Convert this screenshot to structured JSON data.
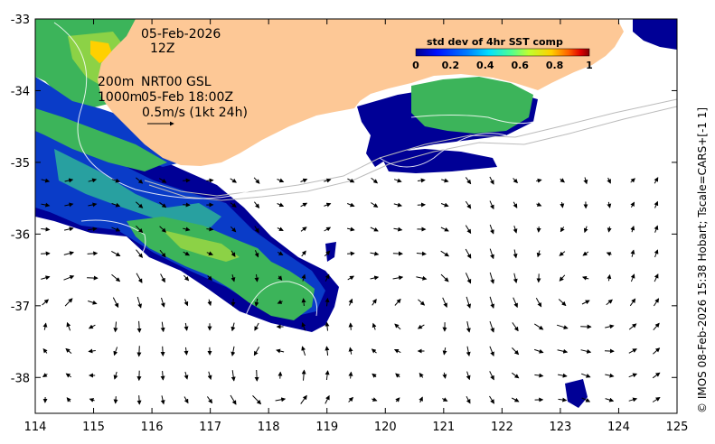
{
  "header": {
    "date": "05-Feb-2026",
    "hour": "12Z",
    "depth_shallow": "200m",
    "depth_deep": "1000m",
    "product": "NRT00 GSL",
    "valid_time": "05-Feb 18:00Z",
    "current_scale": "0.5m/s (1kt 24h)"
  },
  "colorbar": {
    "title": "std dev of 4hr SST comp",
    "ticks": [
      "0",
      "0.2",
      "0.4",
      "0.6",
      "0.8",
      "1"
    ],
    "colors": [
      "#00008f",
      "#0010ff",
      "#0080ff",
      "#00e0ff",
      "#50ff90",
      "#c0ff30",
      "#ffd000",
      "#ff6000",
      "#e00000",
      "#800000"
    ]
  },
  "axes": {
    "x_ticks": [
      "114",
      "115",
      "116",
      "117",
      "118",
      "119",
      "120",
      "121",
      "122",
      "123",
      "124",
      "125"
    ],
    "y_ticks": [
      "-33",
      "-34",
      "-35",
      "-36",
      "-37",
      "-38"
    ],
    "lon_range": [
      114,
      125
    ],
    "lat_range": [
      -38.5,
      -33
    ]
  },
  "credit": "© IMOS 08-Feb-2026 15:38 Hobart; Tscale=CARS+[-1 1]",
  "colors": {
    "land": "#fdc896",
    "ocean": "#ffffff",
    "sst_deep": "#000096",
    "sst_blue": "#0a3cc8",
    "sst_green": "#3cb45a",
    "sst_lightgreen": "#8cd246",
    "sst_teal": "#28a0a0"
  }
}
